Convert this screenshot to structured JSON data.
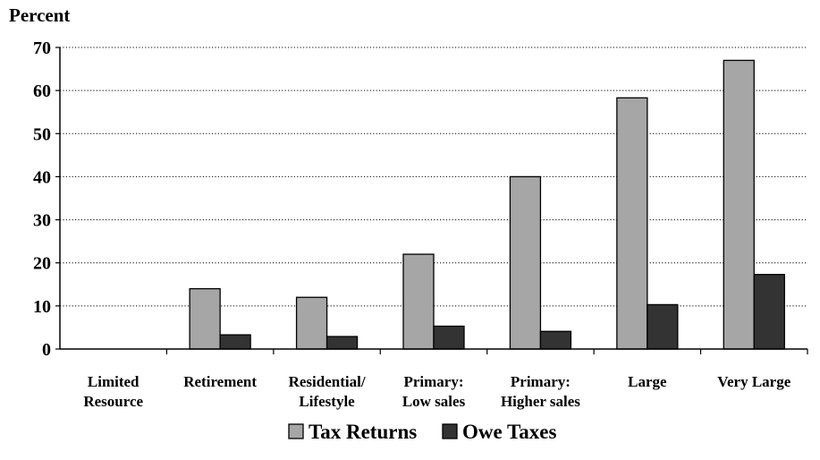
{
  "chart_data": {
    "type": "bar",
    "title": "",
    "xlabel": "",
    "ylabel": "Percent",
    "ylim": [
      0,
      70
    ],
    "yticks": [
      0,
      10,
      20,
      30,
      40,
      50,
      60,
      70
    ],
    "grid": "horizontal dotted",
    "legend_position": "bottom",
    "categories": [
      [
        "Limited",
        "Resource"
      ],
      [
        "Retirement"
      ],
      [
        "Residential/",
        "Lifestyle"
      ],
      [
        "Primary:",
        "Low sales"
      ],
      [
        "Primary:",
        "Higher sales"
      ],
      [
        "Large"
      ],
      [
        "Very Large"
      ]
    ],
    "series": [
      {
        "name": "Tax Returns",
        "color": "#a6a6a6",
        "values": [
          0,
          14,
          12,
          22,
          40,
          58.3,
          67
        ]
      },
      {
        "name": "Owe Taxes",
        "color": "#333333",
        "values": [
          0,
          3.3,
          2.9,
          5.3,
          4.1,
          10.3,
          17.3
        ]
      }
    ]
  }
}
